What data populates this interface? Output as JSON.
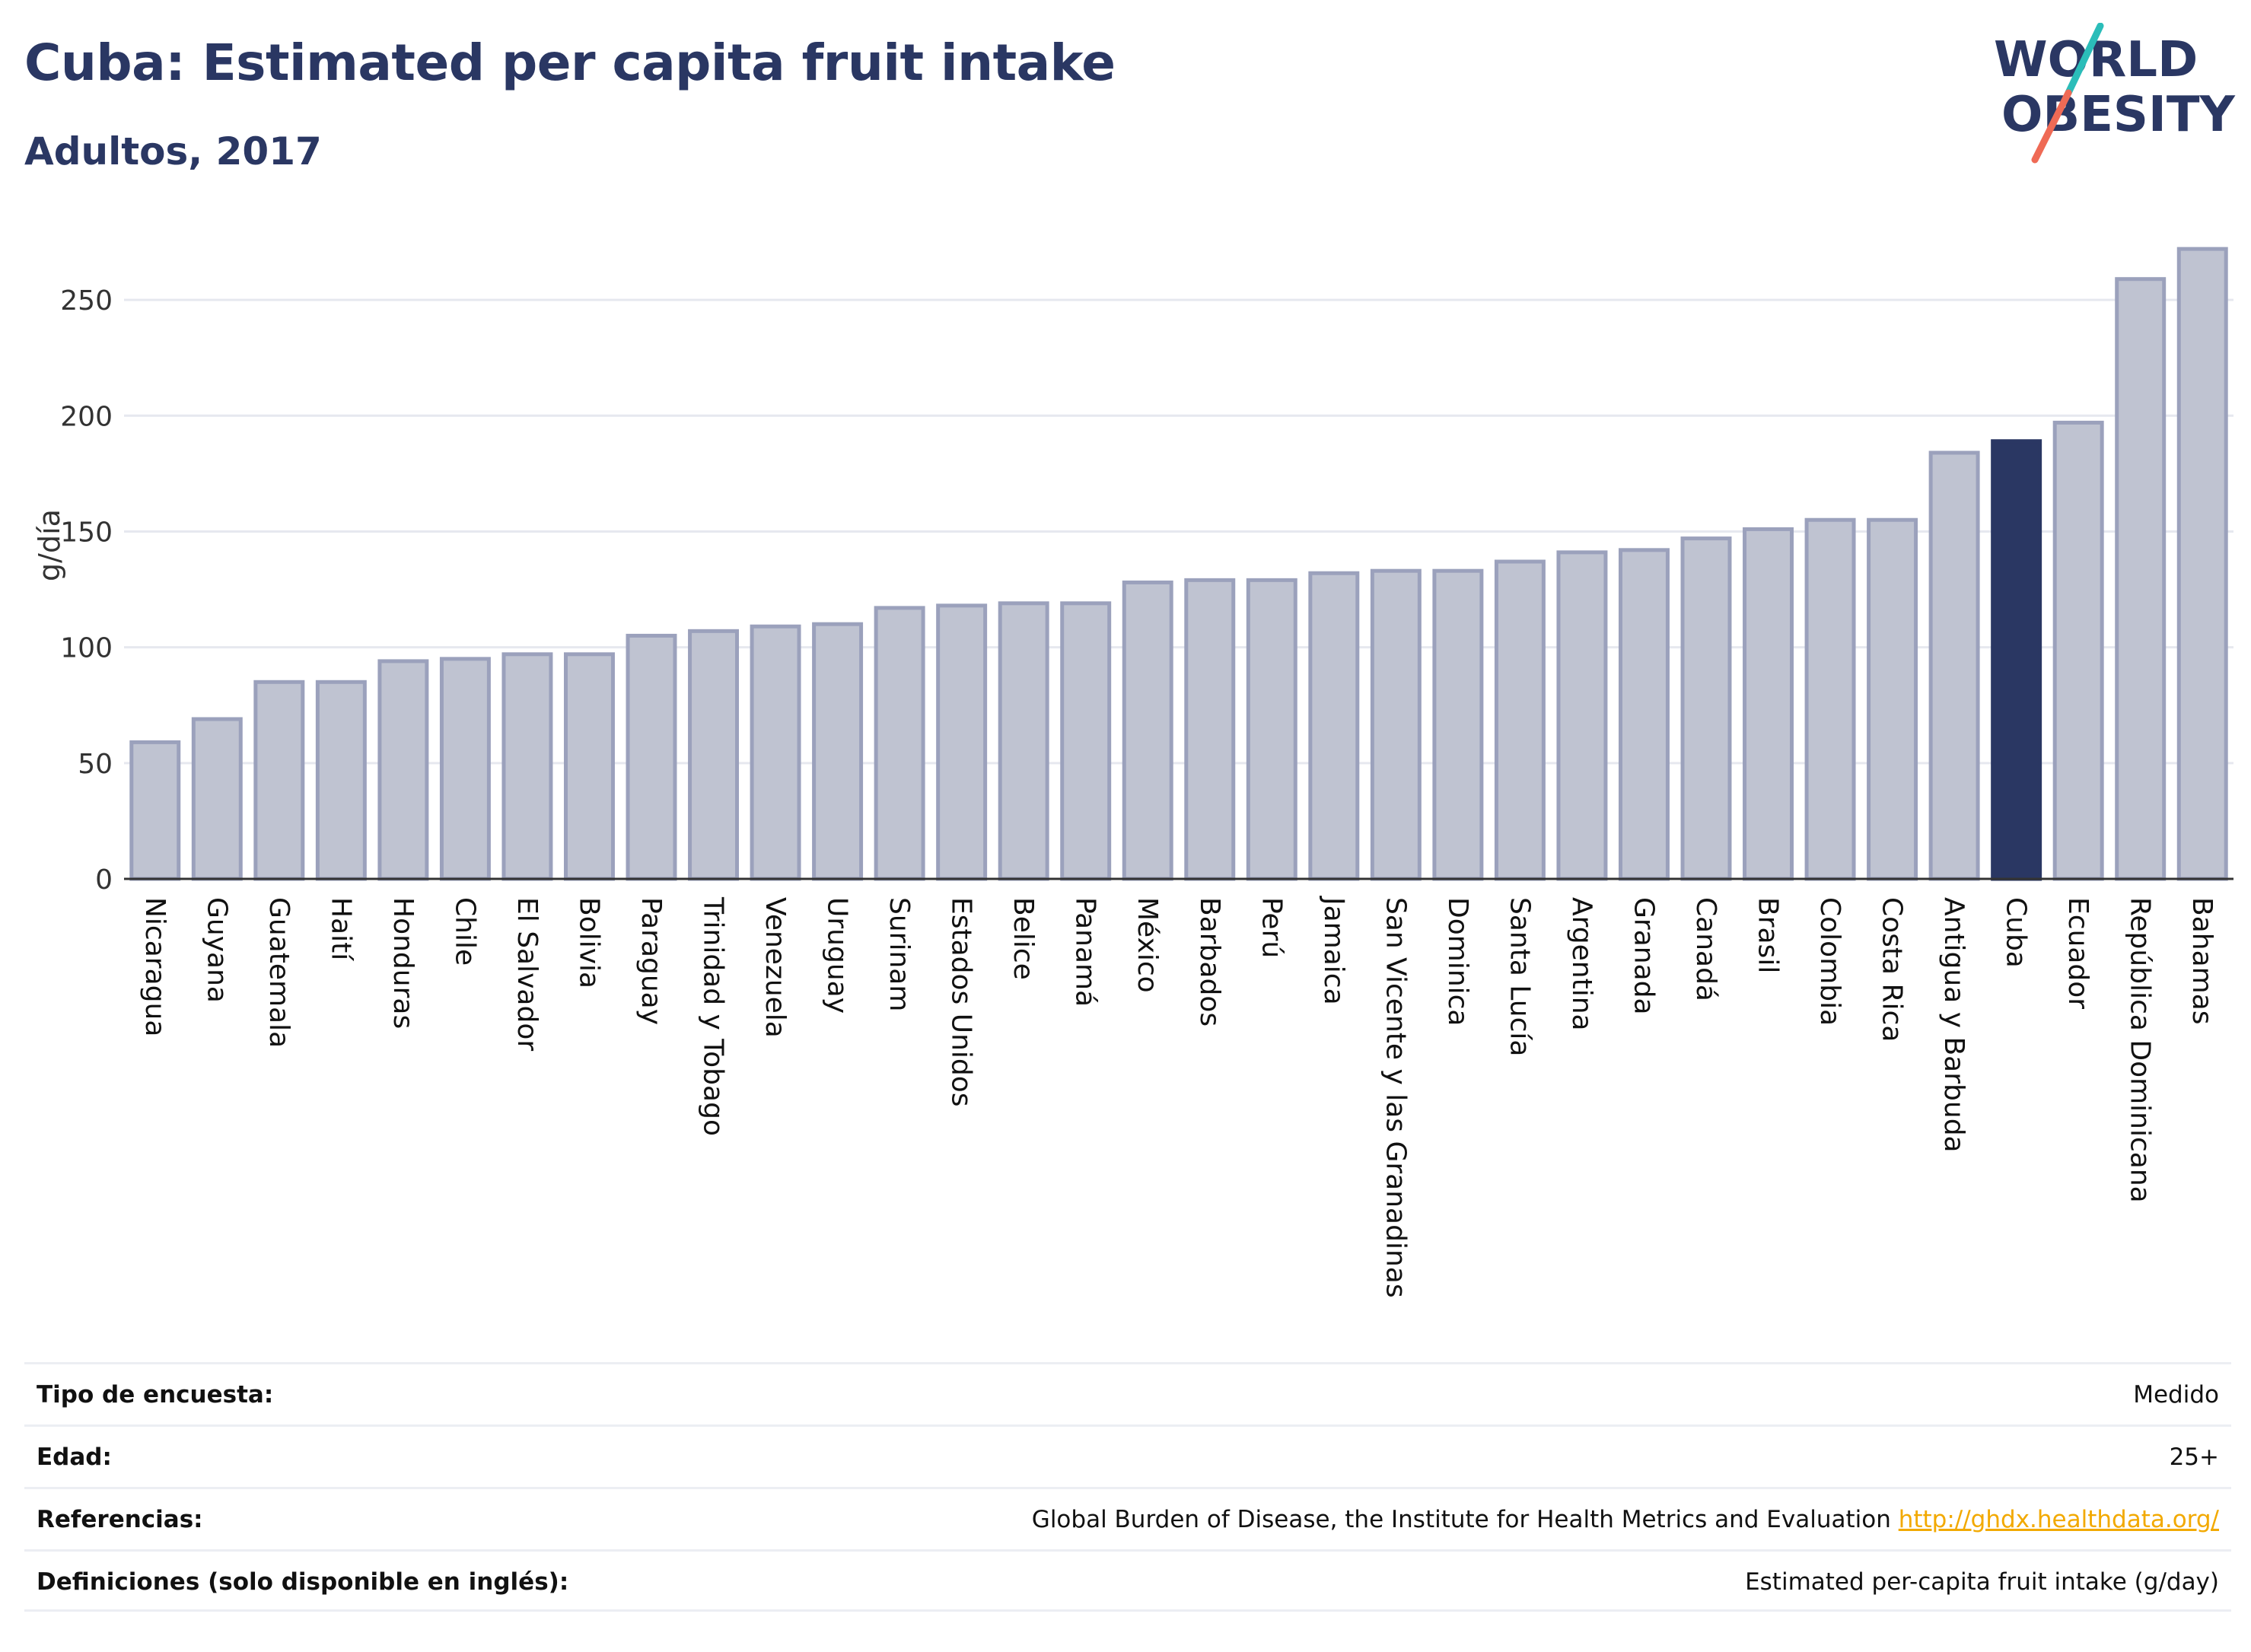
{
  "header": {
    "title": "Cuba: Estimated per capita fruit intake",
    "subtitle": "Adultos, 2017"
  },
  "logo": {
    "line1": "WORLD",
    "line2": "OBESITY"
  },
  "chart_data": {
    "type": "bar",
    "ylabel": "g/día",
    "xlabel": "",
    "ylim": [
      0,
      275
    ],
    "yticks": [
      0,
      50,
      100,
      150,
      200,
      250
    ],
    "grid": true,
    "categories": [
      "Nicaragua",
      "Guyana",
      "Guatemala",
      "Haití",
      "Honduras",
      "Chile",
      "El Salvador",
      "Bolivia",
      "Paraguay",
      "Trinidad y Tobago",
      "Venezuela",
      "Uruguay",
      "Surinam",
      "Estados Unidos",
      "Belice",
      "Panamá",
      "México",
      "Barbados",
      "Perú",
      "Jamaica",
      "San Vicente y las Granadinas",
      "Dominica",
      "Santa Lucía",
      "Argentina",
      "Granada",
      "Canadá",
      "Brasil",
      "Colombia",
      "Costa Rica",
      "Antigua y Barbuda",
      "Cuba",
      "Ecuador",
      "República Dominicana",
      "Bahamas"
    ],
    "values": [
      59,
      69,
      85,
      85,
      94,
      95,
      97,
      97,
      105,
      107,
      109,
      110,
      117,
      118,
      119,
      119,
      128,
      129,
      129,
      132,
      133,
      133,
      137,
      141,
      142,
      147,
      151,
      155,
      155,
      184,
      189,
      197,
      259,
      272
    ],
    "highlight": "Cuba",
    "colors": {
      "bar": "#bfc3d1",
      "bar_edge": "#9ba1bc",
      "highlight": "#2a3763",
      "grid": "#e6e8ef",
      "axis": "#333333"
    }
  },
  "info": [
    {
      "label": "Tipo de encuesta:",
      "value": "Medido"
    },
    {
      "label": "Edad:",
      "value": "25+"
    },
    {
      "label": "Referencias:",
      "value": "Global Burden of Disease, the Institute for Health Metrics and Evaluation",
      "link": "http://ghdx.healthdata.org/"
    },
    {
      "label": "Definiciones (solo disponible en inglés):",
      "value": "Estimated per-capita fruit intake (g/day)"
    }
  ]
}
